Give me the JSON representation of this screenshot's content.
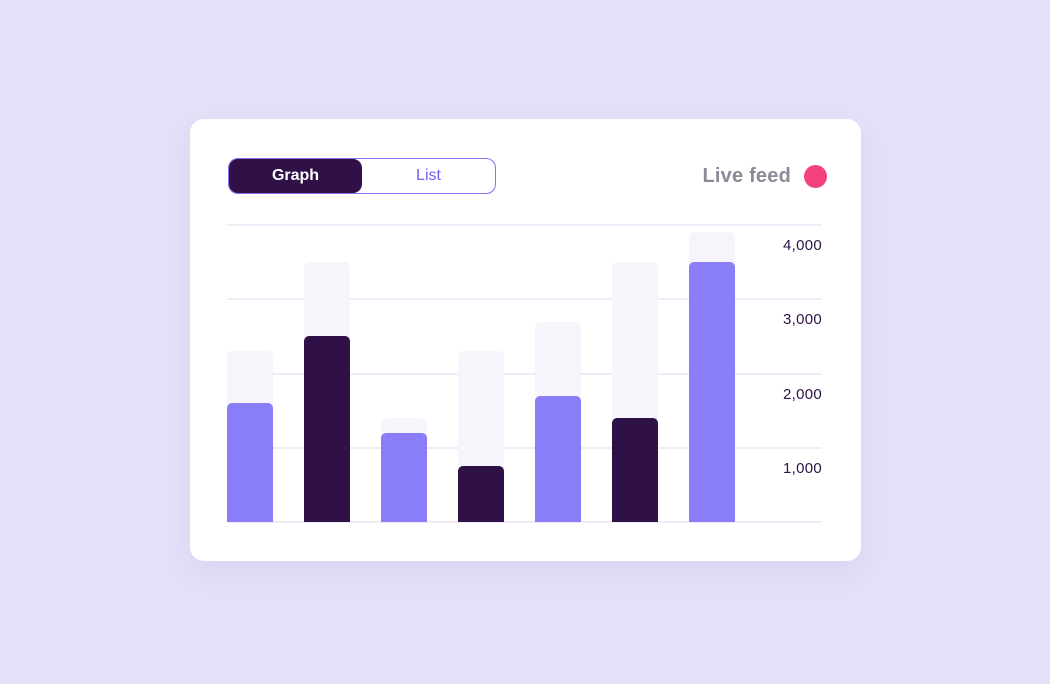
{
  "colors": {
    "page_bg": "#E4E0F8",
    "card_bg": "#FFFFFF",
    "accent_dark": "#2F1147",
    "accent_light": "#8A7DF8",
    "track": "#F7F5FC",
    "gridline": "#EFECF8",
    "tick_text": "#2E1248",
    "toggle_border": "#8670F2",
    "toggle_active_bg": "#2F1147",
    "toggle_active_text": "#FFFFFF",
    "toggle_inactive_text": "#7A5CF0",
    "live_text": "#8D8A98",
    "live_dot": "#F4437C"
  },
  "toolbar": {
    "tabs": [
      {
        "label": "Graph",
        "active": true
      },
      {
        "label": "List",
        "active": false
      }
    ],
    "live_feed": {
      "label": "Live feed"
    }
  },
  "chart_data": {
    "type": "bar",
    "title": "",
    "xlabel": "",
    "ylabel": "",
    "ylim": [
      0,
      4000
    ],
    "grid": true,
    "legend_position": "none",
    "y_axis_side": "right",
    "y_ticks": [
      "4,000",
      "3,000",
      "2,000",
      "1,000"
    ],
    "y_tick_values": [
      4000,
      3000,
      2000,
      1000
    ],
    "series": [
      {
        "name": "background-track",
        "color": "#F7F5FC",
        "values": [
          2300,
          3500,
          1400,
          2300,
          2700,
          3500,
          3900
        ]
      },
      {
        "name": "value",
        "colors": [
          "#8A7DF8",
          "#2F1147",
          "#8A7DF8",
          "#2F1147",
          "#8A7DF8",
          "#2F1147",
          "#8A7DF8"
        ],
        "values": [
          1600,
          2500,
          1200,
          750,
          1700,
          1400,
          3500
        ]
      }
    ]
  }
}
